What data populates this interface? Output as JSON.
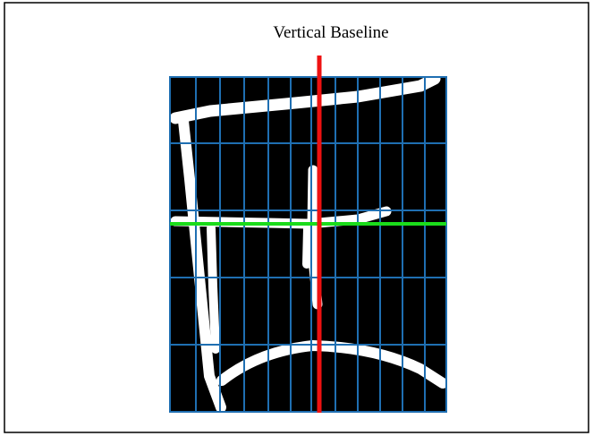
{
  "label": "Vertical Baseline"
}
